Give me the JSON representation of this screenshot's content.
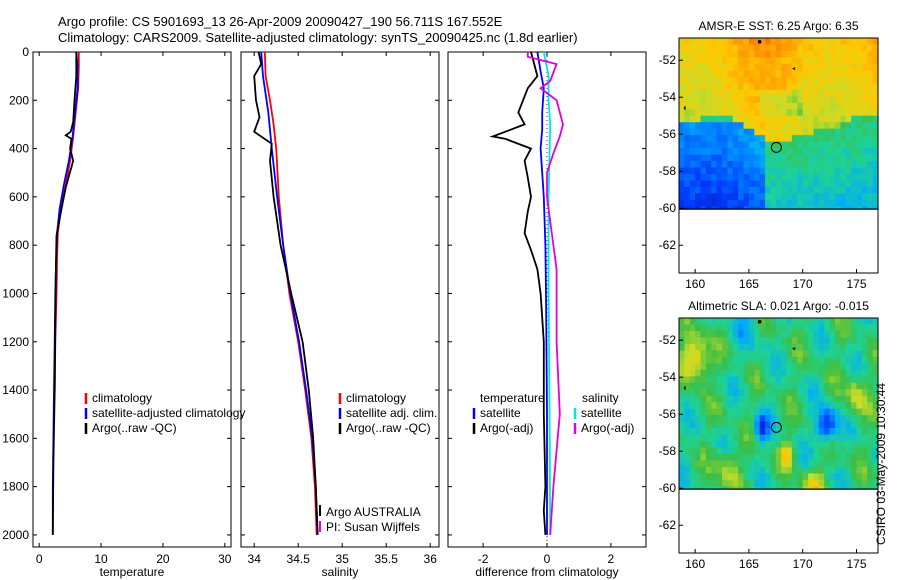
{
  "header": {
    "line1": "Argo profile: CS 5901693_13 26-Apr-2009 20090427_190 56.711S 167.552E",
    "line2": "Climatology: CARS2009. Satellite-adjusted climatology: synTS_20090425.nc (1.8d earlier)"
  },
  "side_label": "CSIRO 03-May-2009 10:30:44",
  "colors": {
    "climatology": "#ff0000",
    "satellite": "#0000ff",
    "argo": "#000000",
    "sat_salinity": "#00e5e5",
    "argo_adj_salinity": "#e000e0"
  },
  "chart_data": [
    {
      "type": "line",
      "xlabel": "temperature",
      "ylabel": "",
      "xlim": [
        -1,
        31
      ],
      "ylim": [
        2050,
        0
      ],
      "xticks": [
        "0",
        "10",
        "20",
        "30"
      ],
      "yticks": [
        "0",
        "200",
        "400",
        "600",
        "800",
        "1000",
        "1200",
        "1400",
        "1600",
        "1800",
        "2000"
      ],
      "legend": [
        "climatology",
        "satellite-adjusted climatology",
        "Argo(..raw -QC)"
      ],
      "series": [
        {
          "name": "climatology",
          "color": "#ff0000",
          "points": [
            [
              6.4,
              0
            ],
            [
              6.4,
              60
            ],
            [
              6.3,
              150
            ],
            [
              5.9,
              250
            ],
            [
              5.5,
              350
            ],
            [
              5.0,
              450
            ],
            [
              4.3,
              550
            ],
            [
              3.5,
              650
            ],
            [
              3.0,
              750
            ],
            [
              2.9,
              850
            ],
            [
              2.8,
              1000
            ],
            [
              2.6,
              1200
            ],
            [
              2.5,
              1400
            ]
          ]
        },
        {
          "name": "satellite-adjusted climatology",
          "color": "#0000ff",
          "points": [
            [
              6.0,
              0
            ],
            [
              6.2,
              60
            ],
            [
              6.2,
              150
            ],
            [
              5.8,
              250
            ],
            [
              5.4,
              350
            ],
            [
              4.8,
              450
            ],
            [
              4.0,
              550
            ],
            [
              3.3,
              650
            ],
            [
              2.9,
              750
            ],
            [
              2.7,
              900
            ],
            [
              2.6,
              1000
            ],
            [
              2.5,
              1200
            ],
            [
              2.4,
              1400
            ],
            [
              2.3,
              1600
            ],
            [
              2.2,
              1800
            ],
            [
              2.2,
              2000
            ]
          ]
        },
        {
          "name": "Argo(..raw -QC)",
          "color": "#000000",
          "points": [
            [
              6.0,
              0
            ],
            [
              6.0,
              100
            ],
            [
              5.7,
              200
            ],
            [
              5.5,
              290
            ],
            [
              5.1,
              330
            ],
            [
              4.3,
              345
            ],
            [
              5.2,
              360
            ],
            [
              5.0,
              400
            ],
            [
              5.5,
              450
            ],
            [
              4.3,
              560
            ],
            [
              3.6,
              650
            ],
            [
              2.8,
              760
            ],
            [
              2.7,
              900
            ],
            [
              2.6,
              1100
            ],
            [
              2.5,
              1400
            ],
            [
              2.3,
              1700
            ],
            [
              2.2,
              2000
            ]
          ]
        }
      ]
    },
    {
      "type": "line",
      "xlabel": "salinity",
      "ylabel": "",
      "xlim": [
        33.85,
        36.1
      ],
      "ylim": [
        2050,
        0
      ],
      "xticks": [
        "34",
        "34.5",
        "35",
        "35.5",
        "36"
      ],
      "legend": [
        "climatology",
        "satellite adj. clim.",
        "Argo(..raw -QC)"
      ],
      "annotations": [
        "Argo AUSTRALIA",
        "PI: Susan Wijffels"
      ],
      "series": [
        {
          "name": "climatology",
          "color": "#ff0000",
          "points": [
            [
              34.12,
              0
            ],
            [
              34.13,
              100
            ],
            [
              34.18,
              200
            ],
            [
              34.22,
              300
            ],
            [
              34.25,
              400
            ],
            [
              34.28,
              600
            ],
            [
              34.33,
              800
            ],
            [
              34.4,
              1000
            ],
            [
              34.5,
              1200
            ],
            [
              34.58,
              1400
            ],
            [
              34.65,
              1600
            ],
            [
              34.69,
              1800
            ],
            [
              34.71,
              2000
            ]
          ]
        },
        {
          "name": "satellite adj. clim.",
          "color": "#0000ff",
          "points": [
            [
              34.08,
              0
            ],
            [
              34.09,
              50
            ],
            [
              34.1,
              100
            ],
            [
              34.16,
              250
            ],
            [
              34.2,
              400
            ],
            [
              34.26,
              600
            ],
            [
              34.33,
              800
            ],
            [
              34.41,
              1000
            ],
            [
              34.51,
              1200
            ],
            [
              34.59,
              1400
            ],
            [
              34.66,
              1600
            ],
            [
              34.7,
              1800
            ],
            [
              34.72,
              2000
            ]
          ]
        },
        {
          "name": "Argo(..raw -QC)",
          "color": "#000000",
          "points": [
            [
              34.05,
              0
            ],
            [
              34.08,
              50
            ],
            [
              34.0,
              100
            ],
            [
              34.02,
              200
            ],
            [
              34.06,
              270
            ],
            [
              34.0,
              330
            ],
            [
              34.2,
              380
            ],
            [
              34.18,
              450
            ],
            [
              34.22,
              600
            ],
            [
              34.3,
              800
            ],
            [
              34.42,
              1000
            ],
            [
              34.55,
              1200
            ],
            [
              34.62,
              1400
            ],
            [
              34.67,
              1600
            ],
            [
              34.7,
              1800
            ],
            [
              34.72,
              2000
            ]
          ]
        }
      ]
    },
    {
      "type": "line",
      "xlabel": "difference from climatology",
      "ylabel": "",
      "xlim": [
        -3.1,
        3.1
      ],
      "ylim": [
        2050,
        0
      ],
      "xticks": [
        "-2",
        "0",
        "2"
      ],
      "legend_left": [
        "temperature",
        "satellite",
        "Argo(-adj)"
      ],
      "legend_right": [
        "salinity",
        "satellite",
        "Argo(-adj)"
      ],
      "series": [
        {
          "name": "satellite",
          "group": "temperature",
          "color": "#0000ff",
          "points": [
            [
              -0.3,
              0
            ],
            [
              -0.2,
              80
            ],
            [
              -0.1,
              150
            ],
            [
              -0.15,
              250
            ],
            [
              -0.15,
              320
            ],
            [
              -0.2,
              400
            ],
            [
              -0.15,
              500
            ],
            [
              -0.1,
              600
            ],
            [
              -0.05,
              800
            ],
            [
              -0.03,
              1000
            ],
            [
              0,
              1500
            ],
            [
              0,
              2000
            ]
          ]
        },
        {
          "name": "satellite",
          "group": "salinity",
          "color": "#00e5e5",
          "points": [
            [
              -0.1,
              0
            ],
            [
              0.05,
              100
            ],
            [
              0.05,
              200
            ],
            [
              0.1,
              300
            ],
            [
              0.08,
              400
            ],
            [
              0.05,
              600
            ],
            [
              0.05,
              800
            ],
            [
              0.05,
              1000
            ],
            [
              0.08,
              1500
            ],
            [
              0.1,
              2000
            ]
          ]
        },
        {
          "name": "Argo(-adj)",
          "group": "temperature",
          "color": "#000000",
          "points": [
            [
              -0.5,
              0
            ],
            [
              -0.3,
              100
            ],
            [
              -0.6,
              150
            ],
            [
              -0.9,
              250
            ],
            [
              -0.7,
              300
            ],
            [
              -1.7,
              350
            ],
            [
              -1.3,
              360
            ],
            [
              -0.5,
              400
            ],
            [
              -0.7,
              450
            ],
            [
              -0.6,
              520
            ],
            [
              -0.5,
              600
            ],
            [
              -0.6,
              660
            ],
            [
              -0.7,
              750
            ],
            [
              -0.5,
              820
            ],
            [
              -0.3,
              900
            ],
            [
              -0.2,
              1000
            ],
            [
              -0.1,
              1200
            ],
            [
              -0.1,
              1500
            ],
            [
              -0.05,
              1800
            ],
            [
              -0.1,
              1900
            ],
            [
              -0.05,
              2000
            ]
          ]
        },
        {
          "name": "Argo(-adj)",
          "group": "salinity",
          "color": "#e000e0",
          "points": [
            [
              -0.6,
              0
            ],
            [
              -0.6,
              20
            ],
            [
              0.3,
              50
            ],
            [
              0.1,
              120
            ],
            [
              -0.2,
              150
            ],
            [
              0.3,
              200
            ],
            [
              0.5,
              300
            ],
            [
              0.4,
              350
            ],
            [
              0.2,
              420
            ],
            [
              0,
              500
            ],
            [
              0,
              600
            ],
            [
              0.1,
              700
            ],
            [
              0.2,
              800
            ],
            [
              0.3,
              900
            ],
            [
              0.3,
              1000
            ],
            [
              0.3,
              1200
            ],
            [
              0.4,
              1500
            ],
            [
              0.2,
              1800
            ],
            [
              0.1,
              2000
            ]
          ]
        }
      ]
    },
    {
      "type": "heatmap",
      "title": "AMSR-E SST: 6.25  Argo: 6.35",
      "xlim": [
        158.5,
        177
      ],
      "ylim": [
        -63.5,
        -50.8
      ],
      "xticks": [
        "160",
        "165",
        "170",
        "175"
      ],
      "yticks": [
        "-52",
        "-54",
        "-56",
        "-58",
        "-60",
        "-62"
      ],
      "marker": {
        "lon": 167.552,
        "lat": -56.711
      }
    },
    {
      "type": "heatmap",
      "title": "Altimetric SLA: 0.021  Argo: -0.015",
      "xlim": [
        158.5,
        177
      ],
      "ylim": [
        -63.5,
        -50.8
      ],
      "xticks": [
        "160",
        "165",
        "170",
        "175"
      ],
      "yticks": [
        "-52",
        "-54",
        "-56",
        "-58",
        "-60",
        "-62"
      ],
      "marker": {
        "lon": 167.552,
        "lat": -56.711
      }
    }
  ]
}
